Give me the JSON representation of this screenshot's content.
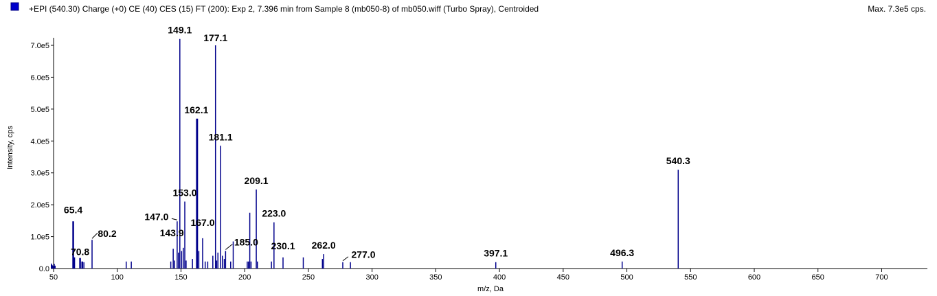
{
  "header": {
    "title": "+EPI (540.30) Charge (+0) CE (40) CES (15) FT (200): Exp 2, 7.396 min from Sample 8 (mb050-8) of mb050.wiff (Turbo Spray), Centroided",
    "max_label": "Max. 7.3e5 cps."
  },
  "colors": {
    "series": "#00008b",
    "accent": "#0000cc",
    "axis": "#000000"
  },
  "chart_data": {
    "type": "bar",
    "xlabel": "m/z, Da",
    "ylabel": "Intensity, cps",
    "xlim": [
      50,
      735
    ],
    "ylim": [
      0,
      730000
    ],
    "x_ticks": [
      "50",
      "100",
      "150",
      "200",
      "250",
      "300",
      "350",
      "400",
      "450",
      "500",
      "550",
      "600",
      "650",
      "700"
    ],
    "y_ticks": [
      "0.0",
      "1.0e5",
      "2.0e5",
      "3.0e5",
      "4.0e5",
      "5.0e5",
      "6.0e5",
      "7.0e5"
    ],
    "peaks": [
      {
        "mz": 50.5,
        "y": 15000
      },
      {
        "mz": 51.2,
        "y": 9000
      },
      {
        "mz": 65.4,
        "y": 148000
      },
      {
        "mz": 66.2,
        "y": 35000
      },
      {
        "mz": 70.8,
        "y": 33000
      },
      {
        "mz": 72.5,
        "y": 22000
      },
      {
        "mz": 73.8,
        "y": 20000
      },
      {
        "mz": 80.2,
        "y": 90000
      },
      {
        "mz": 107.0,
        "y": 22000
      },
      {
        "mz": 111.0,
        "y": 22000
      },
      {
        "mz": 142.0,
        "y": 22000
      },
      {
        "mz": 143.9,
        "y": 62000
      },
      {
        "mz": 145.0,
        "y": 25000
      },
      {
        "mz": 147.0,
        "y": 148000
      },
      {
        "mz": 148.0,
        "y": 50000
      },
      {
        "mz": 149.1,
        "y": 720000
      },
      {
        "mz": 150.5,
        "y": 55000
      },
      {
        "mz": 151.8,
        "y": 65000
      },
      {
        "mz": 153.0,
        "y": 210000
      },
      {
        "mz": 154.0,
        "y": 25000
      },
      {
        "mz": 159.0,
        "y": 30000
      },
      {
        "mz": 162.1,
        "y": 470000
      },
      {
        "mz": 163.0,
        "y": 470000
      },
      {
        "mz": 164.0,
        "y": 55000
      },
      {
        "mz": 167.0,
        "y": 95000
      },
      {
        "mz": 169.0,
        "y": 22000
      },
      {
        "mz": 171.0,
        "y": 22000
      },
      {
        "mz": 175.0,
        "y": 40000
      },
      {
        "mz": 177.1,
        "y": 700000
      },
      {
        "mz": 178.0,
        "y": 25000
      },
      {
        "mz": 179.0,
        "y": 50000
      },
      {
        "mz": 181.1,
        "y": 385000
      },
      {
        "mz": 182.5,
        "y": 40000
      },
      {
        "mz": 184.0,
        "y": 30000
      },
      {
        "mz": 185.0,
        "y": 55000
      },
      {
        "mz": 189.0,
        "y": 22000
      },
      {
        "mz": 191.0,
        "y": 85000
      },
      {
        "mz": 202.0,
        "y": 22000
      },
      {
        "mz": 203.0,
        "y": 22000
      },
      {
        "mz": 204.0,
        "y": 175000
      },
      {
        "mz": 205.0,
        "y": 22000
      },
      {
        "mz": 209.1,
        "y": 248000
      },
      {
        "mz": 210.0,
        "y": 22000
      },
      {
        "mz": 221.0,
        "y": 22000
      },
      {
        "mz": 223.0,
        "y": 145000
      },
      {
        "mz": 230.1,
        "y": 35000
      },
      {
        "mz": 246.0,
        "y": 35000
      },
      {
        "mz": 261.0,
        "y": 30000
      },
      {
        "mz": 262.0,
        "y": 45000
      },
      {
        "mz": 277.0,
        "y": 20000
      },
      {
        "mz": 283.0,
        "y": 20000
      },
      {
        "mz": 397.1,
        "y": 20000
      },
      {
        "mz": 496.3,
        "y": 22000
      },
      {
        "mz": 540.3,
        "y": 310000
      }
    ],
    "labels": [
      {
        "text": "65.4",
        "mz": 65.4
      },
      {
        "text": "70.8",
        "mz": 70.8
      },
      {
        "text": "80.2",
        "mz": 80.2
      },
      {
        "text": "143.9",
        "mz": 143.9
      },
      {
        "text": "147.0",
        "mz": 147.0
      },
      {
        "text": "149.1",
        "mz": 149.1
      },
      {
        "text": "153.0",
        "mz": 153.0
      },
      {
        "text": "162.1",
        "mz": 162.1
      },
      {
        "text": "167.0",
        "mz": 167.0
      },
      {
        "text": "177.1",
        "mz": 177.1
      },
      {
        "text": "181.1",
        "mz": 181.1
      },
      {
        "text": "185.0",
        "mz": 185.0
      },
      {
        "text": "209.1",
        "mz": 209.1
      },
      {
        "text": "223.0",
        "mz": 223.0
      },
      {
        "text": "230.1",
        "mz": 230.1
      },
      {
        "text": "262.0",
        "mz": 262.0
      },
      {
        "text": "277.0",
        "mz": 277.0
      },
      {
        "text": "397.1",
        "mz": 397.1
      },
      {
        "text": "496.3",
        "mz": 496.3
      },
      {
        "text": "540.3",
        "mz": 540.3
      }
    ]
  }
}
